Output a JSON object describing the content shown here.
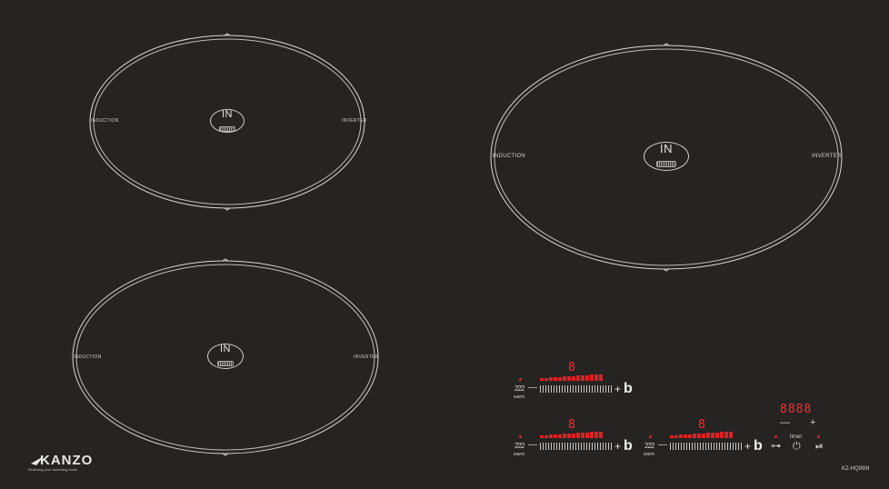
{
  "zones": {
    "left_word": "INDUCTION",
    "right_word": "INVERTER",
    "badge_text": "IN"
  },
  "controls": {
    "digit": "8",
    "warm_label": "warm",
    "heat_glyph": "222",
    "plus": "+",
    "boost": "b",
    "minus": "—"
  },
  "timer": {
    "display": "8888",
    "label": "timer",
    "minus": "—",
    "plus": "+"
  },
  "brand": {
    "logo": "KANZO",
    "tagline": "Realizing your dreaming home"
  },
  "model": "KZ-HQ999I",
  "icons": {
    "lock": "key-lock-icon",
    "power": "power-icon",
    "pause": "pause-play-icon"
  },
  "colors": {
    "surface": "#252423",
    "indicator": "#e02020",
    "print": "#cfcfcf"
  }
}
